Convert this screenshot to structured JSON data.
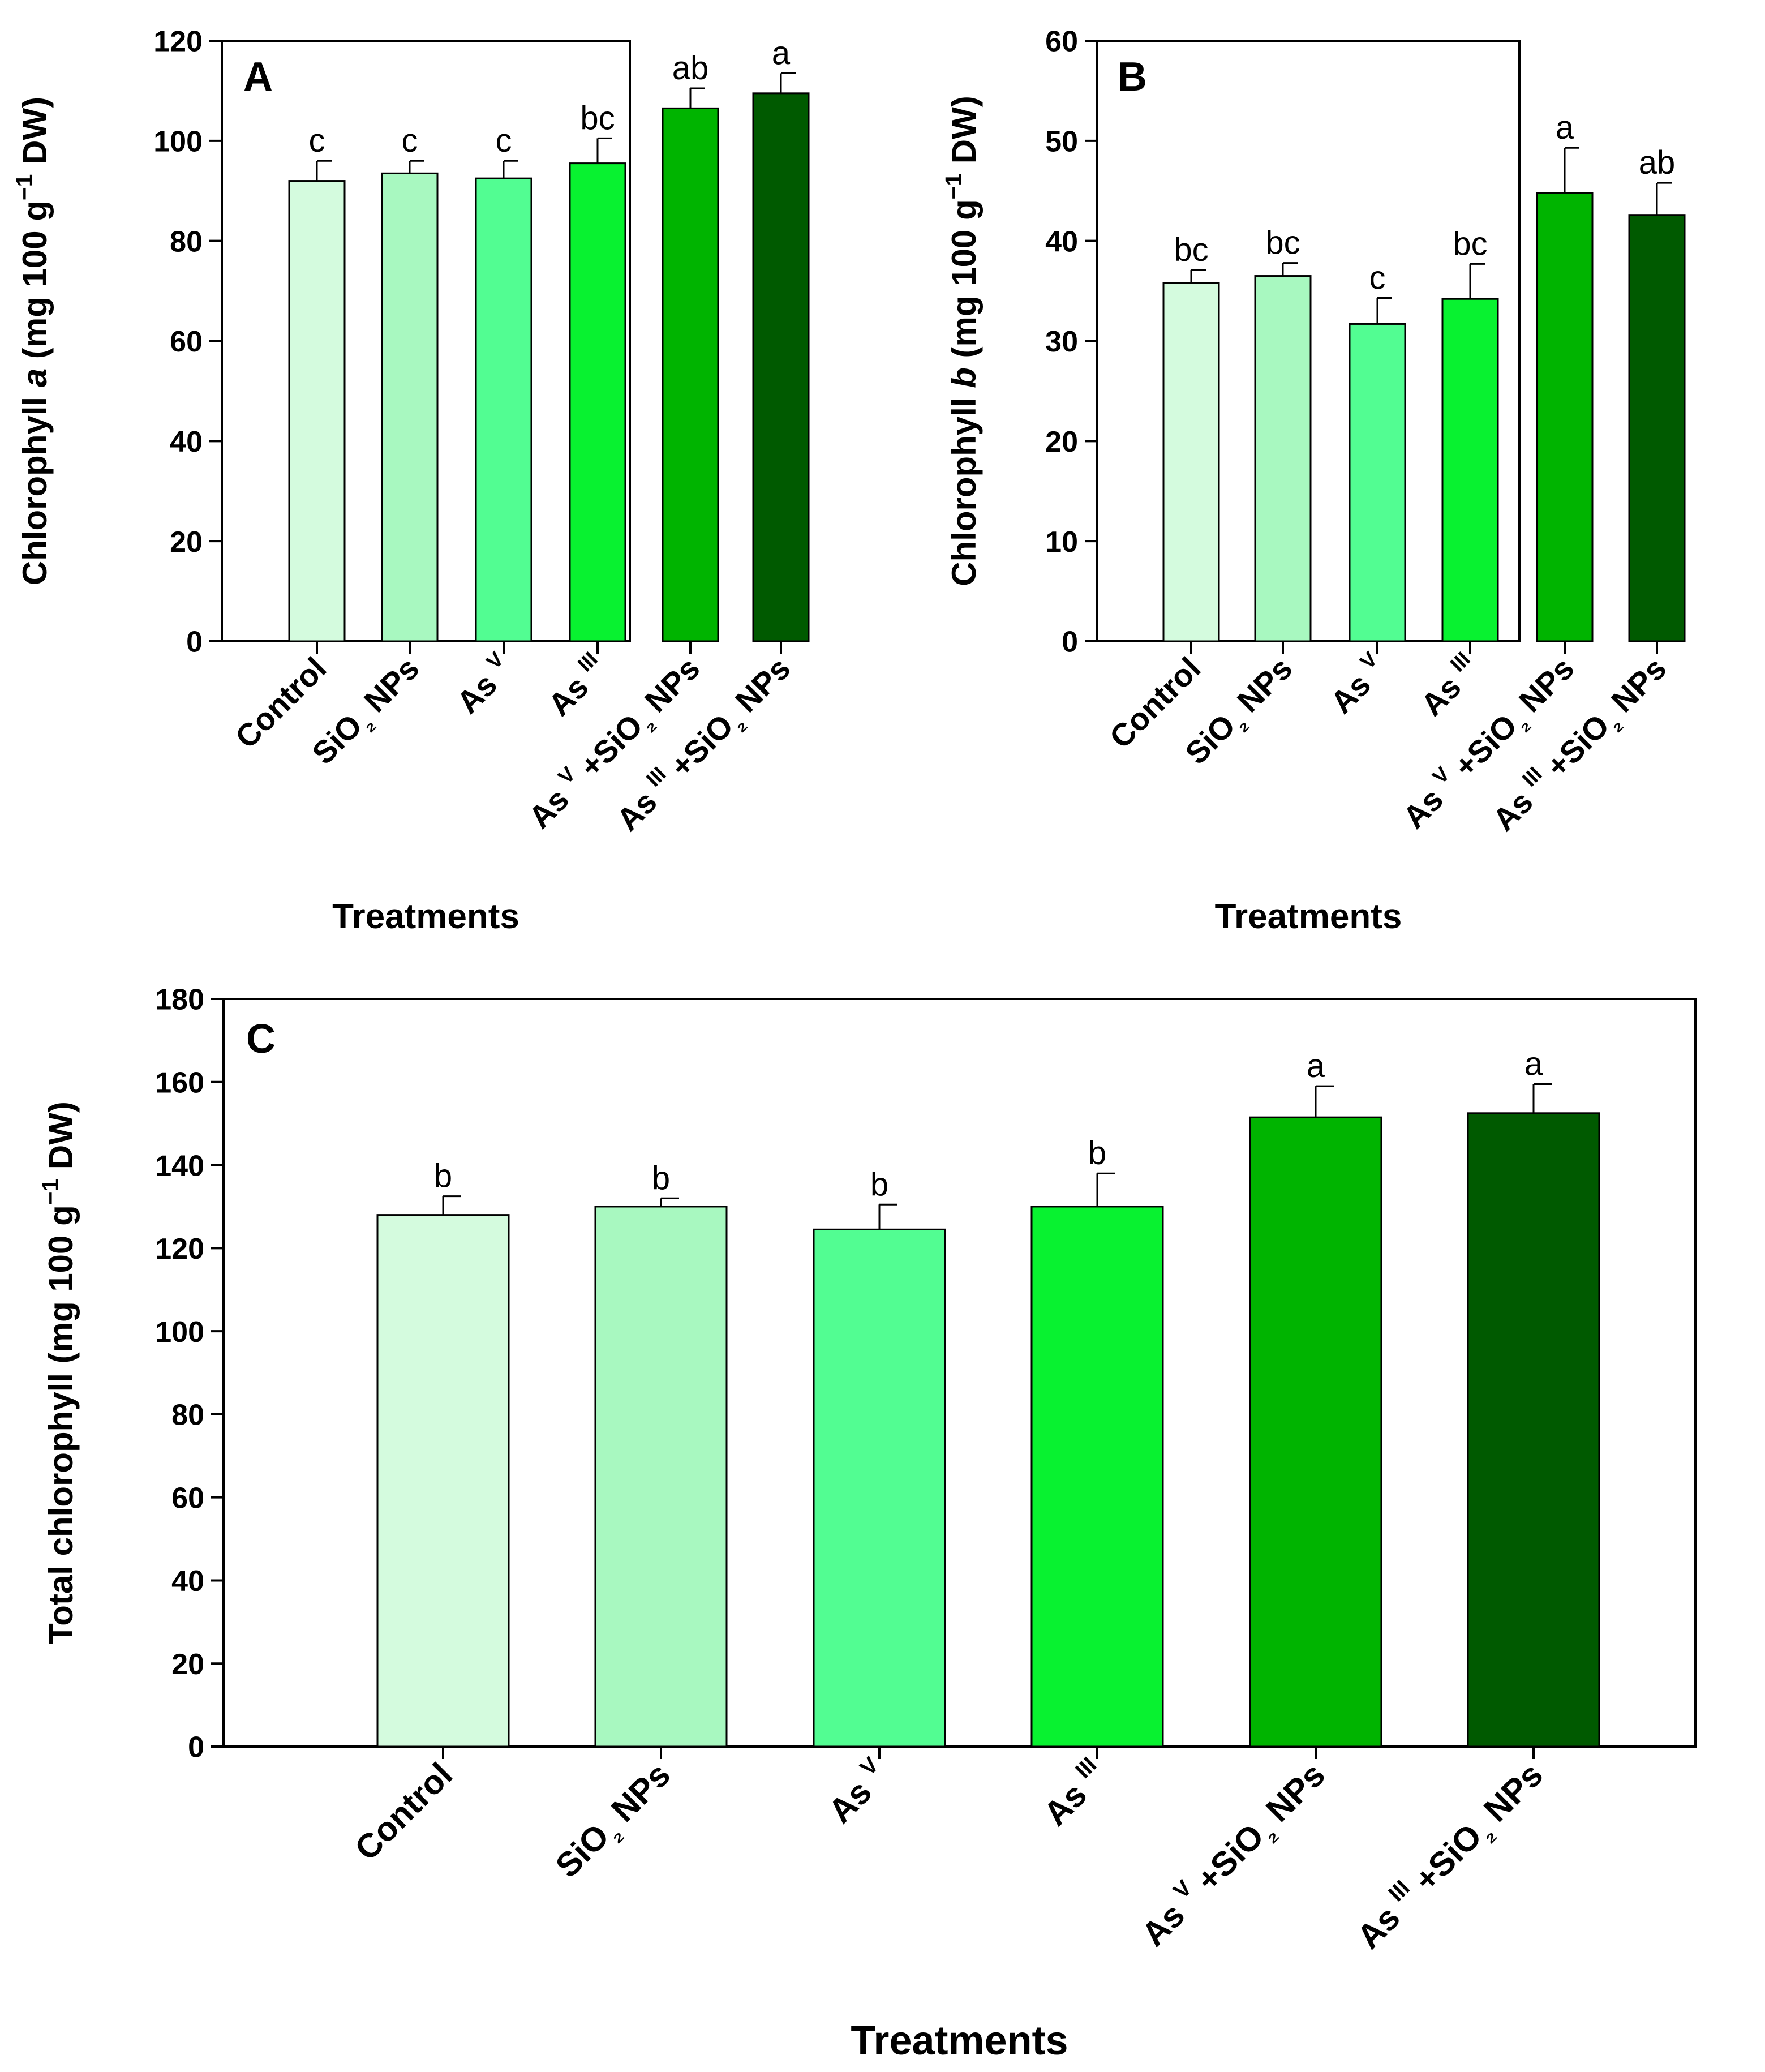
{
  "chart_data": [
    {
      "type": "bar",
      "panel_label": "A",
      "categories": [
        "Control",
        "SiO₂ NPs",
        "As V",
        "As III",
        "As V +SiO₂ NPs",
        "As III +SiO₂ NPs"
      ],
      "values": [
        92,
        93.5,
        92.5,
        95.5,
        106.5,
        109.5
      ],
      "errors": [
        4,
        2.5,
        3.5,
        5,
        4,
        4
      ],
      "sig_letters": [
        "c",
        "c",
        "c",
        "bc",
        "ab",
        "a"
      ],
      "colors": [
        "#d4fbde",
        "#a8f8c0",
        "#52fd92",
        "#08f230",
        "#00b400",
        "#005a00"
      ],
      "ylim": [
        0,
        120
      ],
      "yticks": [
        0,
        20,
        40,
        60,
        80,
        100,
        120
      ],
      "xlabel": "Treatments",
      "ylabel": "Chlorophyll a (mg 100 g−1 DW)"
    },
    {
      "type": "bar",
      "panel_label": "B",
      "categories": [
        "Control",
        "SiO₂ NPs",
        "As V",
        "As III",
        "As V +SiO₂ NPs",
        "As III +SiO₂ NPs"
      ],
      "values": [
        35.8,
        36.5,
        31.7,
        34.2,
        44.8,
        42.6
      ],
      "errors": [
        1.3,
        1.3,
        2.6,
        3.5,
        4.5,
        3.2
      ],
      "sig_letters": [
        "bc",
        "bc",
        "c",
        "bc",
        "a",
        "ab"
      ],
      "colors": [
        "#d4fbde",
        "#a8f8c0",
        "#52fd92",
        "#08f230",
        "#00b400",
        "#005a00"
      ],
      "ylim": [
        0,
        60
      ],
      "yticks": [
        0,
        10,
        20,
        30,
        40,
        50,
        60
      ],
      "xlabel": "Treatments",
      "ylabel": "Chlorophyll b (mg 100 g−1 DW)"
    },
    {
      "type": "bar",
      "panel_label": "C",
      "categories": [
        "Control",
        "SiO₂ NPs",
        "As V",
        "As III",
        "As V +SiO₂ NPs",
        "As III +SiO₂ NPs"
      ],
      "values": [
        128,
        130,
        124.5,
        130,
        151.5,
        152.5
      ],
      "errors": [
        4.5,
        2,
        6,
        8,
        7.5,
        7
      ],
      "sig_letters": [
        "b",
        "b",
        "b",
        "b",
        "a",
        "a"
      ],
      "colors": [
        "#d4fbde",
        "#a8f8c0",
        "#52fd92",
        "#08f230",
        "#00b400",
        "#005a00"
      ],
      "ylim": [
        0,
        180
      ],
      "yticks": [
        0,
        20,
        40,
        60,
        80,
        100,
        120,
        140,
        160,
        180
      ],
      "xlabel": "Treatments",
      "ylabel": "Total chlorophyll (mg 100 g−1 DW)"
    }
  ]
}
